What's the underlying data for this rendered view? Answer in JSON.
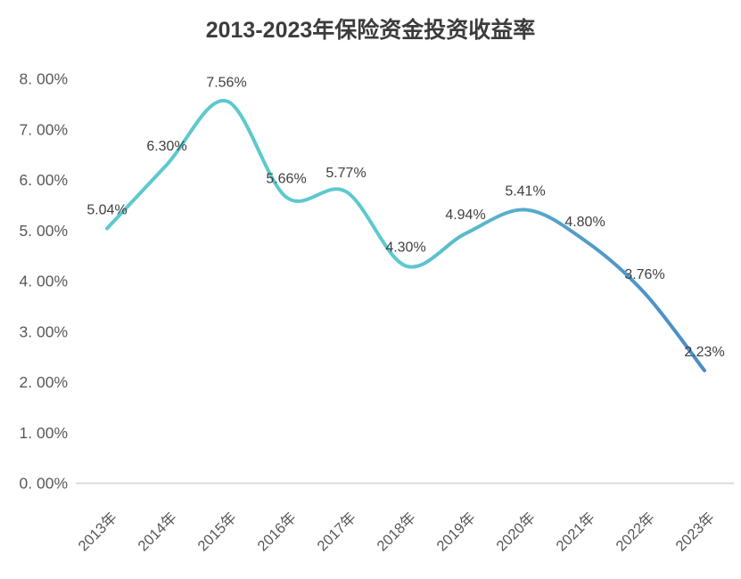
{
  "title": "2013-2023年保险资金投资收益率",
  "chart_data": {
    "type": "line",
    "smooth": true,
    "grid": false,
    "legend": false,
    "title": "2013-2023年保险资金投资收益率",
    "xlabel": "",
    "ylabel": "",
    "categories": [
      "2013年",
      "2014年",
      "2015年",
      "2016年",
      "2017年",
      "2018年",
      "2019年",
      "2020年",
      "2021年",
      "2022年",
      "2023年"
    ],
    "values": [
      5.04,
      6.3,
      7.56,
      5.66,
      5.77,
      4.3,
      4.94,
      5.41,
      4.8,
      3.76,
      2.23
    ],
    "point_labels": [
      "5.04%",
      "6.30%",
      "7.56%",
      "5.66%",
      "5.77%",
      "4.30%",
      "4.94%",
      "5.41%",
      "4.80%",
      "3.76%",
      "2.23%"
    ],
    "ylim": [
      0,
      8
    ],
    "y_tick_values": [
      0,
      1,
      2,
      3,
      4,
      5,
      6,
      7,
      8
    ],
    "y_tick_labels": [
      "0. 00%",
      "1. 00%",
      "2. 00%",
      "3. 00%",
      "4. 00%",
      "5. 00%",
      "6. 00%",
      "7. 00%",
      "8. 00%"
    ]
  },
  "colors": {
    "background": "#FFFFFF",
    "title_text": "#3C3C3C",
    "tick_text": "#595959",
    "data_label_text": "#3F3F3F",
    "axis_line": "#D9D9D9",
    "line_gradient_stops": [
      {
        "offset": 0,
        "color": "#5CC9CE"
      },
      {
        "offset": 0.5,
        "color": "#5CC9CE"
      },
      {
        "offset": 0.78,
        "color": "#549ECA"
      },
      {
        "offset": 1,
        "color": "#4A8CC4"
      }
    ]
  }
}
